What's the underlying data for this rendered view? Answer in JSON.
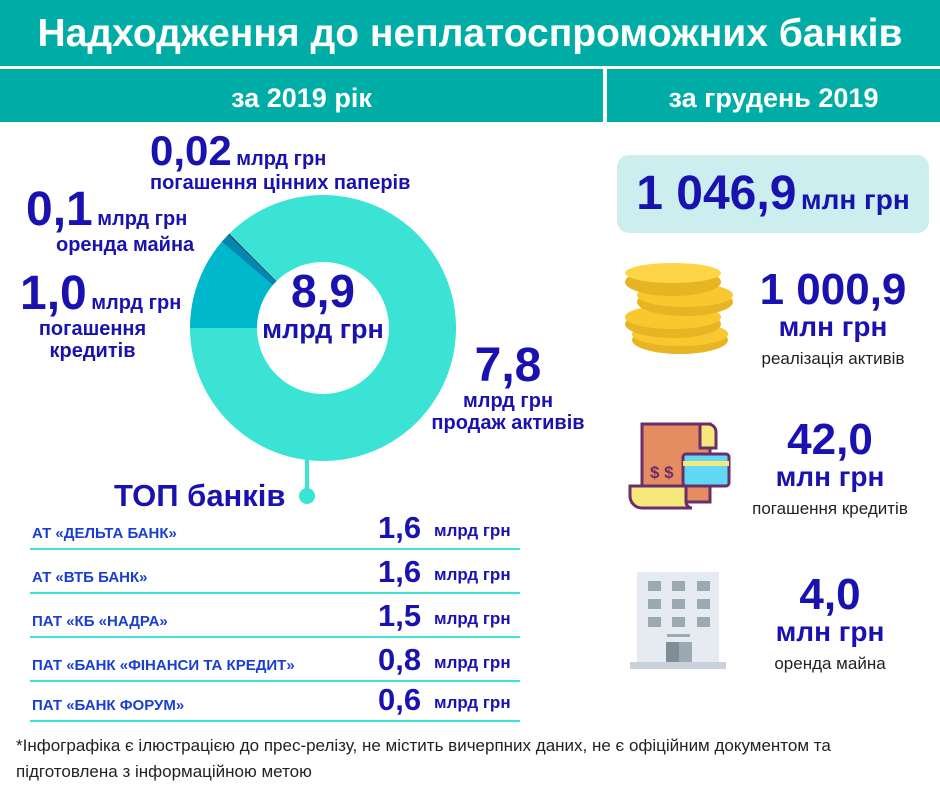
{
  "title": "Надходження до неплатоспроможних банків",
  "tabs": {
    "year": "за 2019 рік",
    "december": "за грудень 2019"
  },
  "colors": {
    "header": "#00aca6",
    "text": "#1a12b0",
    "accent": "#3ae3d4"
  },
  "chart_data": {
    "type": "pie",
    "center": {
      "value": "8,9",
      "unit": "млрд грн"
    },
    "slices": [
      {
        "value": 1.0,
        "label": "1,0",
        "unit": "млрд грн",
        "name": "погашення кредитів",
        "color": "#00b8cc"
      },
      {
        "value": 0.1,
        "label": "0,1",
        "unit": "млрд грн",
        "name": "оренда майна",
        "color": "#0088b0"
      },
      {
        "value": 0.02,
        "label": "0,02",
        "unit": "млрд грн",
        "name": "погашення цінних паперів",
        "color": "#1a4a80"
      },
      {
        "value": 7.8,
        "label": "7,8",
        "unit": "млрд грн",
        "name": "продаж активів",
        "color": "#3ae3d4"
      }
    ]
  },
  "top": {
    "title": "ТОП банків",
    "unit": "млрд грн",
    "banks": [
      {
        "name": "АТ «ДЕЛЬТА БАНК»",
        "value": "1,6"
      },
      {
        "name": "АТ «ВТБ БАНК»",
        "value": "1,6"
      },
      {
        "name": "ПАТ «КБ «НАДРА»",
        "value": "1,5"
      },
      {
        "name": "ПАТ «БАНК «ФІНАНСИ ТА КРЕДИТ»",
        "value": "0,8"
      },
      {
        "name": "ПАТ «БАНК ФОРУМ»",
        "value": "0,6"
      }
    ]
  },
  "december": {
    "total": "1 046,9",
    "total_unit": "млн грн",
    "items": [
      {
        "value": "1 000,9",
        "unit": "млн грн",
        "desc": "реалізація активів",
        "icon": "coins-icon"
      },
      {
        "value": "42,0",
        "unit": "млн грн",
        "desc": "погашення кредитів",
        "icon": "receipt-card-icon"
      },
      {
        "value": "4,0",
        "unit": "млн грн",
        "desc": "оренда майна",
        "icon": "building-icon"
      }
    ]
  },
  "note": "*Інфографіка є ілюстрацією до прес-релізу, не містить вичерпних даних, не є офіційним документом та підготовлена з інформаційною метою"
}
